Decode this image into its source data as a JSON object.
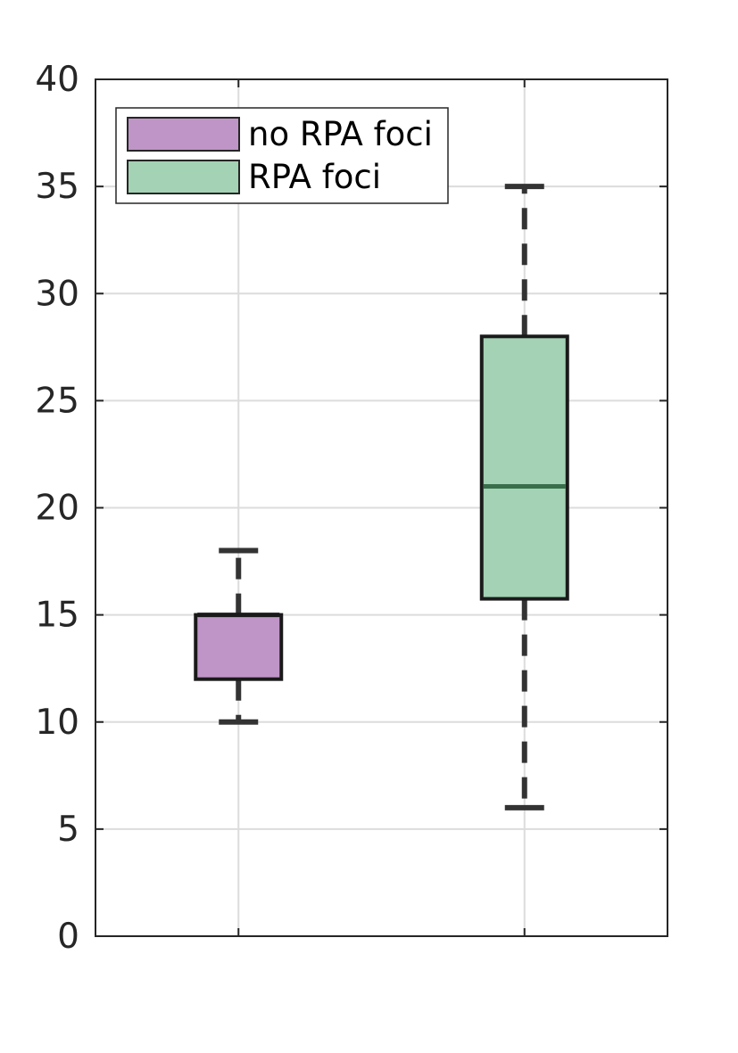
{
  "chart_data": {
    "type": "box",
    "categories": [
      "no RPA foci",
      "RPA foci"
    ],
    "series": [
      {
        "name": "no RPA foci",
        "color": "#bf95c7",
        "min": 10,
        "q1": 12,
        "median": 15,
        "q3": 15,
        "max": 18
      },
      {
        "name": "RPA foci",
        "color": "#a3d2b4",
        "median_color": "#3a6e4b",
        "min": 6,
        "q1": 15.75,
        "median": 21,
        "q3": 28,
        "max": 35
      }
    ],
    "ylim": [
      0,
      40
    ],
    "yticks": [
      0,
      5,
      10,
      15,
      20,
      25,
      30,
      35,
      40
    ],
    "ytick_labels": [
      "0",
      "5",
      "10",
      "15",
      "20",
      "25",
      "30",
      "35",
      "40"
    ],
    "grid": true,
    "legend": {
      "position": "top-left",
      "entries": [
        {
          "label": "no RPA foci",
          "color": "#bf95c7"
        },
        {
          "label": "RPA foci",
          "color": "#a3d2b4"
        }
      ]
    },
    "title": "",
    "xlabel": "",
    "ylabel": ""
  }
}
